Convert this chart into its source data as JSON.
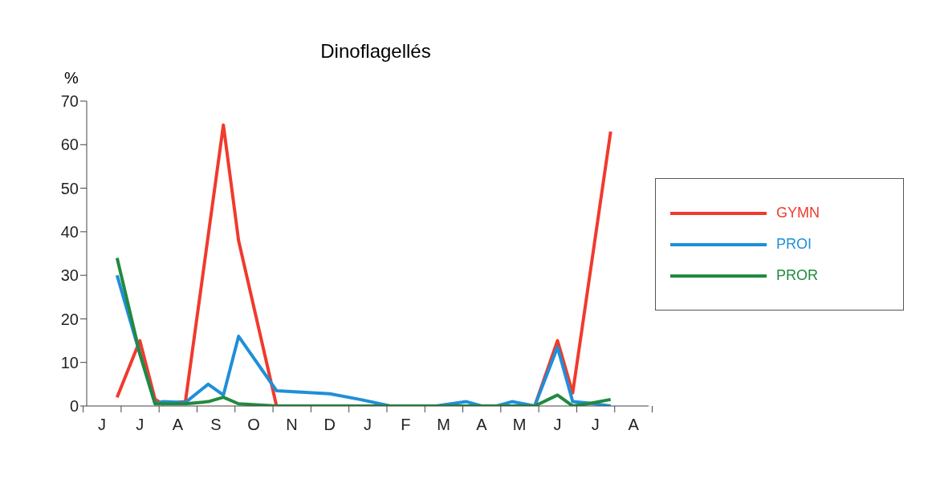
{
  "chart_data": {
    "type": "line",
    "title": "Dinoflagellés",
    "ylabel": "%",
    "categories": [
      null,
      null,
      "J",
      null,
      null,
      null,
      null,
      "J",
      null,
      null,
      null,
      null,
      "A",
      null,
      null,
      null,
      null,
      "S",
      null,
      null,
      null,
      null,
      "O",
      null,
      null,
      null,
      null,
      "N",
      null,
      null,
      null,
      null,
      "D",
      null,
      null,
      null,
      null,
      "J",
      null,
      null,
      null,
      null,
      "F",
      null,
      null,
      null,
      null,
      "M",
      null,
      null,
      null,
      null,
      "A",
      null,
      null,
      null,
      null,
      "M",
      null,
      null,
      null,
      null,
      "J",
      null,
      null,
      null,
      null,
      "J",
      null,
      null,
      null,
      null,
      "A",
      null,
      null
    ],
    "ylim": [
      0,
      70
    ],
    "yticks": [
      0,
      10,
      20,
      30,
      40,
      50,
      60,
      70
    ],
    "legend": "right",
    "marker": "none",
    "line_style": "solid",
    "grid": false,
    "series": [
      {
        "name": "GYMN",
        "color": "#f03a2e",
        "values": [
          null,
          null,
          null,
          null,
          2,
          null,
          null,
          15,
          null,
          1.5,
          0.5,
          null,
          null,
          1,
          null,
          null,
          null,
          null,
          64.5,
          null,
          38,
          null,
          null,
          null,
          null,
          0,
          null,
          null,
          null,
          null,
          null,
          null,
          null,
          null,
          null,
          null,
          null,
          null,
          null,
          null,
          null,
          null,
          null,
          null,
          null,
          null,
          null,
          null,
          null,
          null,
          null,
          null,
          null,
          null,
          null,
          null,
          null,
          null,
          null,
          0,
          null,
          null,
          15,
          null,
          3,
          null,
          null,
          null,
          null,
          63,
          null,
          null,
          null,
          null,
          null
        ]
      },
      {
        "name": "PROI",
        "color": "#1f8fd8",
        "values": [
          null,
          null,
          null,
          null,
          30,
          null,
          null,
          12,
          null,
          0.5,
          1,
          null,
          null,
          0.8,
          null,
          null,
          5,
          null,
          2.5,
          null,
          16,
          null,
          null,
          null,
          null,
          3.5,
          null,
          null,
          null,
          null,
          null,
          null,
          2.8,
          null,
          null,
          null,
          1.5,
          null,
          null,
          null,
          0,
          null,
          null,
          null,
          null,
          null,
          0,
          null,
          null,
          null,
          1,
          null,
          0,
          null,
          0,
          null,
          1,
          null,
          null,
          0,
          null,
          null,
          13.5,
          null,
          1,
          null,
          0.7,
          null,
          null,
          0,
          null,
          null,
          null,
          null,
          null
        ]
      },
      {
        "name": "PROR",
        "color": "#218a3e",
        "values": [
          null,
          null,
          null,
          null,
          34,
          null,
          null,
          12,
          null,
          0.5,
          0.5,
          null,
          null,
          0.5,
          null,
          null,
          1,
          null,
          2,
          null,
          0.5,
          null,
          null,
          null,
          null,
          0,
          null,
          null,
          null,
          null,
          null,
          null,
          null,
          null,
          null,
          null,
          null,
          null,
          null,
          null,
          null,
          null,
          null,
          null,
          null,
          null,
          null,
          null,
          null,
          null,
          null,
          null,
          null,
          null,
          null,
          null,
          null,
          null,
          null,
          0,
          null,
          null,
          2.5,
          null,
          0,
          null,
          0.5,
          null,
          null,
          1.5,
          null,
          null,
          null,
          null,
          null
        ]
      }
    ]
  }
}
